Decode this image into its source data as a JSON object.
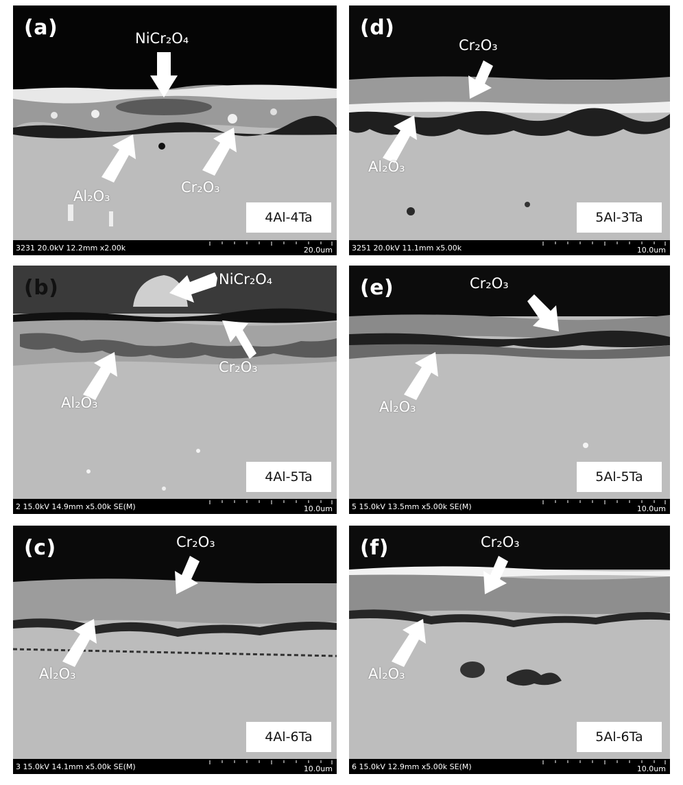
{
  "panels": [
    {
      "tag": "(a)",
      "alloy": "4Al-4Ta",
      "sem_info": "3231 20.0kV 12.2mm x2.00k",
      "scale": "20.0um",
      "labels": {
        "NiCr2O4": "NiCr₂O₄",
        "Al2O3": "Al₂O₃",
        "Cr2O3": "Cr₂O₃"
      }
    },
    {
      "tag": "(b)",
      "alloy": "4Al-5Ta",
      "sem_info": "2 15.0kV 14.9mm x5.00k SE(M)",
      "scale": "10.0um",
      "labels": {
        "NiCr2O4": "NiCr₂O₄",
        "Al2O3": "Al₂O₃",
        "Cr2O3": "Cr₂O₃"
      }
    },
    {
      "tag": "(c)",
      "alloy": "4Al-6Ta",
      "sem_info": "3 15.0kV 14.1mm x5.00k SE(M)",
      "scale": "10.0um",
      "labels": {
        "Al2O3": "Al₂O₃",
        "Cr2O3": "Cr₂O₃"
      }
    },
    {
      "tag": "(d)",
      "alloy": "5Al-3Ta",
      "sem_info": "3251 20.0kV 11.1mm x5.00k",
      "scale": "10.0um",
      "labels": {
        "Al2O3": "Al₂O₃",
        "Cr2O3": "Cr₂O₃"
      }
    },
    {
      "tag": "(e)",
      "alloy": "5Al-5Ta",
      "sem_info": "5 15.0kV 13.5mm x5.00k SE(M)",
      "scale": "10.0um",
      "labels": {
        "Al2O3": "Al₂O₃",
        "Cr2O3": "Cr₂O₃"
      }
    },
    {
      "tag": "(f)",
      "alloy": "5Al-6Ta",
      "sem_info": "6 15.0kV 12.9mm x5.00k SE(M)",
      "scale": "10.0um",
      "labels": {
        "Al2O3": "Al₂O₃",
        "Cr2O3": "Cr₂O₃"
      }
    }
  ],
  "colors": {
    "vacuum": "#0a0a0a",
    "substrate": "#bdbdbd",
    "scale_layer": "#8c8c8c",
    "alumina": "#2a2a2a",
    "chromia_bright": "#e6e6e6"
  }
}
